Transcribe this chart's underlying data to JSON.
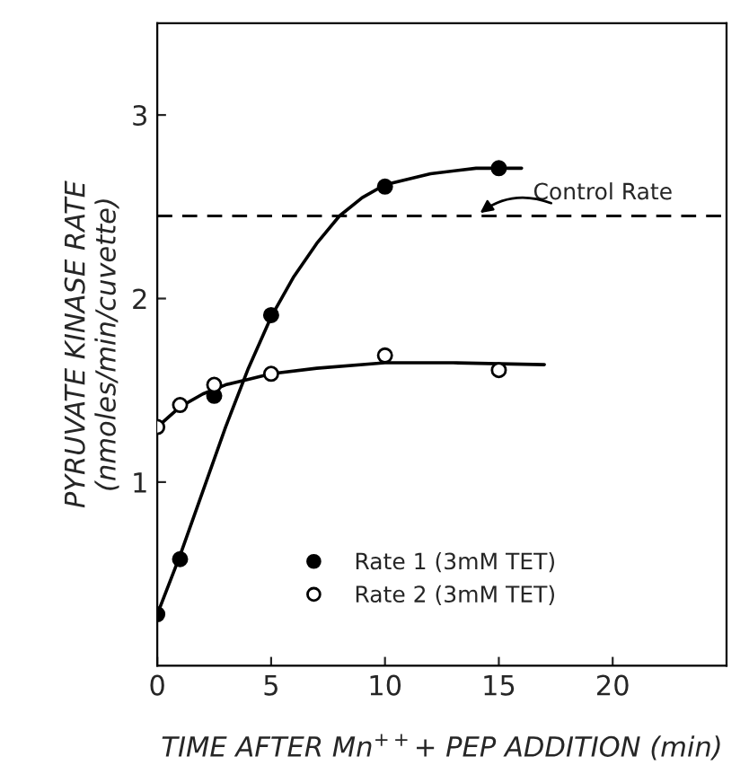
{
  "chart_data": {
    "type": "scatter",
    "xlabel": "TIME AFTER Mn$^{++}$+ PEP ADDITION (min)",
    "ylabel": "PYRUVATE KINASE RATE\n(nmoles/min/cuvette)",
    "xlim": [
      0,
      25
    ],
    "xticks": [
      0,
      5,
      10,
      15,
      20
    ],
    "ylim": [
      0,
      3.5
    ],
    "yticks": [
      1,
      2,
      3
    ],
    "grid": false,
    "legend": "bottom",
    "ref_lines": [
      {
        "axis": "y",
        "value": 2.45,
        "label": "Control Rate",
        "line_style": "dashed",
        "color": "#000000"
      }
    ],
    "series": [
      {
        "name": "Rate 1 (3mM TET)",
        "marker": "circle",
        "color": "#000000",
        "x": [
          0,
          1,
          2.5,
          5,
          10,
          15
        ],
        "values": [
          0.28,
          0.58,
          1.47,
          1.91,
          2.61,
          2.71
        ]
      },
      {
        "name": "Rate 2 (3mM TET)",
        "marker": "circle",
        "color": "#ffffff",
        "x": [
          0,
          1,
          2.5,
          5,
          10,
          15
        ],
        "values": [
          1.3,
          1.42,
          1.53,
          1.59,
          1.69,
          1.61
        ]
      },
      {
        "type": "line",
        "color": "#000000",
        "x": [
          0,
          1,
          2,
          3,
          4,
          5,
          6,
          7,
          8,
          9,
          10,
          12,
          14,
          16
        ],
        "values": [
          0.28,
          0.6,
          0.95,
          1.3,
          1.62,
          1.9,
          2.12,
          2.3,
          2.45,
          2.55,
          2.62,
          2.68,
          2.71,
          2.71
        ]
      },
      {
        "type": "line",
        "color": "#000000",
        "x": [
          0,
          1,
          2,
          3,
          4,
          5,
          7,
          10,
          13,
          17
        ],
        "values": [
          1.3,
          1.41,
          1.48,
          1.53,
          1.56,
          1.59,
          1.62,
          1.65,
          1.65,
          1.64
        ]
      }
    ]
  }
}
